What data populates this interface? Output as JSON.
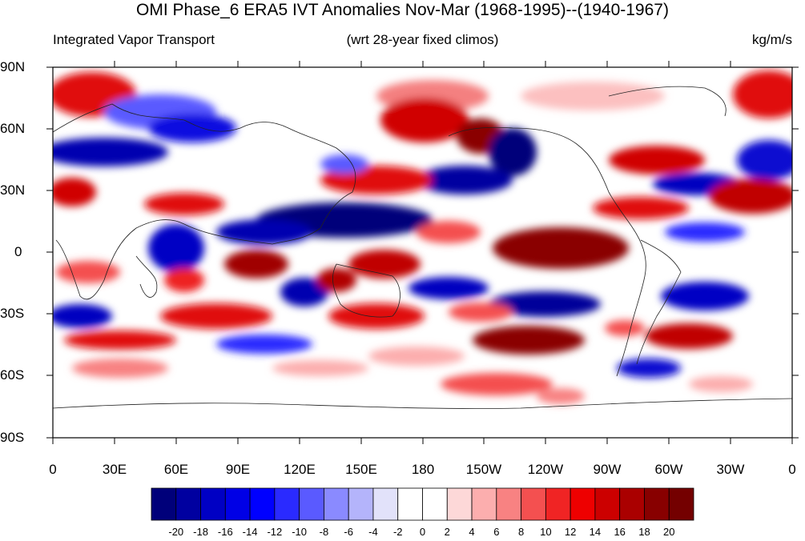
{
  "title": "OMI Phase_6 ERA5 IVT Anomalies Nov-Mar (1968-1995)--(1940-1967)",
  "subtitle_left": "Integrated Vapor Transport",
  "subtitle_center": "(wrt 28-year fixed climos)",
  "subtitle_right": "kg/m/s",
  "y_ticks": [
    "90N",
    "60N",
    "30N",
    "0",
    "30S",
    "60S",
    "90S"
  ],
  "x_ticks": [
    "0",
    "30E",
    "60E",
    "90E",
    "120E",
    "150E",
    "180",
    "150W",
    "120W",
    "90W",
    "60W",
    "30W",
    "0"
  ],
  "colorbar": {
    "labels": [
      "-20",
      "-18",
      "-16",
      "-14",
      "-12",
      "-10",
      "-8",
      "-6",
      "-4",
      "-2",
      "0",
      "2",
      "4",
      "6",
      "8",
      "10",
      "12",
      "14",
      "16",
      "18",
      "20"
    ],
    "colors": [
      "#00007a",
      "#0000a0",
      "#0000c4",
      "#0000e6",
      "#0000ff",
      "#2a2aff",
      "#5a5aff",
      "#8a8aff",
      "#b4b4fb",
      "#e2e2fa",
      "#ffffff",
      "#ffffff",
      "#fdd8d8",
      "#fcaeae",
      "#f88282",
      "#f45050",
      "#f02424",
      "#ee0000",
      "#cc0000",
      "#aa0000",
      "#880000",
      "#740000"
    ]
  },
  "colors": {
    "strong_blue": "#00008a",
    "strong_red": "#900000",
    "coast": "#222222"
  }
}
